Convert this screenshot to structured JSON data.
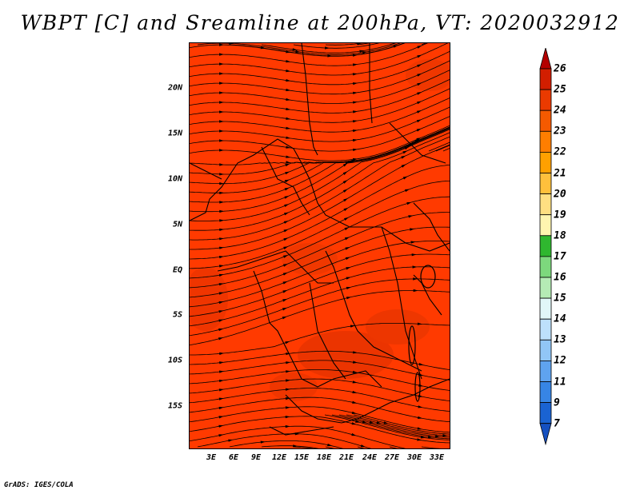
{
  "title": "WBPT [C] and Sreamline at 200hPa, VT: 2020032912",
  "credit": "GrADS: IGES/COLA",
  "map": {
    "field": "WBPT",
    "field_color": "#ff3a00",
    "streamline_color": "#000000",
    "lat_labels": [
      "20N",
      "15N",
      "10N",
      "5N",
      "EQ",
      "5S",
      "10S",
      "15S"
    ],
    "lon_labels": [
      "3E",
      "6E",
      "9E",
      "12E",
      "15E",
      "18E",
      "21E",
      "24E",
      "27E",
      "30E",
      "33E"
    ],
    "lat_range": [
      -19,
      24
    ],
    "lon_range": [
      0,
      34.5
    ]
  },
  "colorbar": {
    "labels": [
      "26",
      "25",
      "24",
      "23",
      "22",
      "21",
      "20",
      "19",
      "18",
      "17",
      "16",
      "15",
      "14",
      "13",
      "12",
      "11",
      "9",
      "7"
    ],
    "colors": [
      "#b40000",
      "#d21e00",
      "#ea3a00",
      "#f55a00",
      "#ff7e00",
      "#ffa000",
      "#ffc03c",
      "#ffdf82",
      "#fff5b0",
      "#2fb72f",
      "#7dd87d",
      "#b5ebb5",
      "#e1f7f8",
      "#bde0fb",
      "#91c6f6",
      "#5fa3ef",
      "#3785e5",
      "#1a63d2",
      "#1550c0"
    ]
  }
}
